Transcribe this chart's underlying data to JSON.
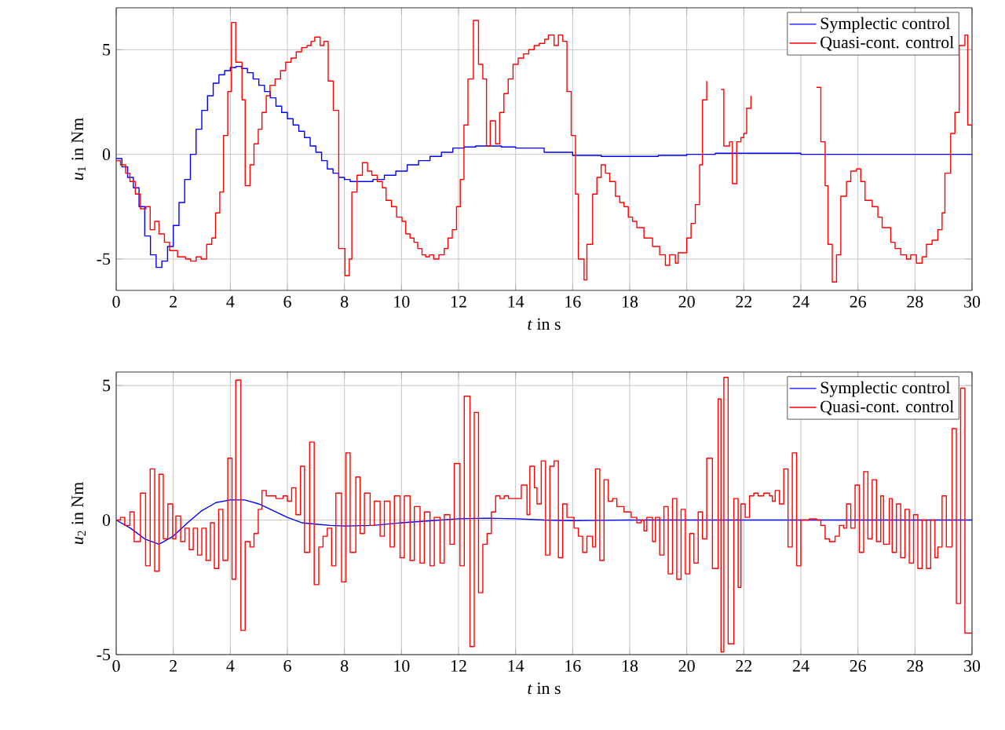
{
  "chart_data": [
    {
      "type": "step",
      "xlabel": "*t* in s",
      "ylabel": "*u*$_{1}$ in Nm",
      "xlim": [
        0,
        30
      ],
      "ylim": [
        -6.5,
        7
      ],
      "xticks": [
        0,
        2,
        4,
        6,
        8,
        10,
        12,
        14,
        16,
        18,
        20,
        22,
        24,
        26,
        28,
        30
      ],
      "yticks": [
        -5,
        0,
        5
      ],
      "grid": true,
      "legend": "top right",
      "series": [
        {
          "name": "Symplectic control",
          "color": "#0000ff",
          "x": [
            0,
            0.2,
            0.4,
            0.6,
            0.8,
            1.0,
            1.2,
            1.4,
            1.6,
            1.8,
            2.0,
            2.2,
            2.4,
            2.6,
            2.8,
            3.0,
            3.2,
            3.4,
            3.6,
            3.8,
            4.0,
            4.2,
            4.4,
            4.6,
            4.8,
            5.0,
            5.2,
            5.4,
            5.6,
            5.8,
            6.0,
            6.2,
            6.4,
            6.6,
            6.8,
            7.0,
            7.2,
            7.4,
            7.6,
            7.8,
            8.0,
            8.2,
            8.4,
            8.6,
            8.8,
            9.0,
            9.4,
            9.8,
            10.2,
            10.6,
            11.0,
            11.4,
            11.8,
            12.2,
            12.6,
            13.0,
            13.5,
            14,
            15,
            16,
            17,
            18,
            19,
            20,
            21,
            22,
            24,
            26,
            28,
            30
          ],
          "values": [
            -0.2,
            -0.6,
            -1.1,
            -1.6,
            -2.5,
            -3.9,
            -4.8,
            -5.4,
            -5.1,
            -4.4,
            -3.4,
            -2.3,
            -1.2,
            0.0,
            1.2,
            2.1,
            2.8,
            3.4,
            3.8,
            4.0,
            4.15,
            4.2,
            4.1,
            3.9,
            3.6,
            3.3,
            3.0,
            2.7,
            2.3,
            2.0,
            1.7,
            1.4,
            1.1,
            0.8,
            0.4,
            0.1,
            -0.3,
            -0.7,
            -0.9,
            -1.1,
            -1.2,
            -1.3,
            -1.3,
            -1.3,
            -1.3,
            -1.2,
            -1.0,
            -0.8,
            -0.5,
            -0.3,
            -0.1,
            0.1,
            0.3,
            0.35,
            0.4,
            0.4,
            0.35,
            0.3,
            0.1,
            -0.05,
            -0.1,
            -0.1,
            -0.05,
            0,
            0.05,
            0.05,
            0,
            0,
            0,
            0
          ]
        },
        {
          "name": "Quasi-cont. control",
          "color": "#ff0000",
          "x": [
            0.0,
            0.15,
            0.33,
            0.48,
            0.67,
            0.85,
            1.04,
            1.19,
            1.35,
            1.5,
            1.69,
            1.87,
            2.15,
            2.43,
            2.61,
            2.8,
            2.98,
            3.17,
            3.35,
            3.48,
            3.63,
            3.76,
            3.91,
            4.04,
            4.19,
            4.41,
            4.52,
            4.69,
            4.83,
            4.98,
            5.11,
            5.26,
            5.39,
            5.57,
            5.76,
            5.94,
            6.13,
            6.31,
            6.5,
            6.69,
            6.83,
            6.96,
            7.15,
            7.28,
            7.43,
            7.61,
            7.8,
            8.02,
            8.17,
            8.26,
            8.44,
            8.63,
            8.81,
            8.96,
            9.15,
            9.33,
            9.46,
            9.65,
            9.83,
            10.02,
            10.15,
            10.3,
            10.44,
            10.57,
            10.72,
            10.85,
            10.98,
            11.13,
            11.31,
            11.5,
            11.63,
            11.78,
            11.93,
            12.06,
            12.19,
            12.33,
            12.52,
            12.7,
            12.85,
            12.98,
            13.11,
            13.3,
            13.44,
            13.59,
            13.74,
            13.91,
            14.09,
            14.28,
            14.46,
            14.65,
            14.83,
            15.02,
            15.15,
            15.35,
            15.5,
            15.65,
            15.8,
            15.95,
            16.1,
            16.2,
            16.4,
            16.5,
            16.7,
            16.85,
            17.0,
            17.15,
            17.3,
            17.5,
            17.65,
            17.8,
            17.95,
            18.1,
            18.25,
            18.5,
            18.8,
            19.05,
            19.25,
            19.4,
            19.6,
            19.7,
            20.0,
            20.15,
            20.3,
            20.45,
            20.55,
            20.7,
            20.85,
            21.2,
            21.3,
            21.5,
            21.6,
            21.75,
            21.9,
            22.0,
            22.1,
            22.25,
            22.4,
            24.55,
            24.7,
            24.85,
            24.95,
            25.1,
            25.25,
            25.4,
            25.6,
            25.75,
            25.95,
            26.1,
            26.25,
            26.5,
            26.7,
            26.85,
            27.15,
            27.3,
            27.5,
            27.7,
            27.85,
            28.05,
            28.25,
            28.4,
            28.6,
            28.8,
            28.95,
            29.05,
            29.25,
            29.4,
            29.55,
            29.75,
            29.85,
            30
          ],
          "values": [
            -0.3,
            -0.5,
            -0.9,
            -1.3,
            -1.9,
            -2.6,
            -2.5,
            -3.6,
            -3.2,
            -3.8,
            -4.2,
            -4.6,
            -4.9,
            -5.0,
            -5.1,
            -4.9,
            -5.0,
            -4.3,
            -4.0,
            -2.8,
            -1.8,
            0.9,
            3.0,
            6.3,
            4.4,
            2.6,
            -1.5,
            -0.5,
            0.5,
            1.2,
            2.0,
            2.8,
            3.3,
            3.6,
            4.0,
            4.4,
            4.6,
            4.9,
            5.1,
            5.2,
            5.4,
            5.6,
            5.2,
            5.4,
            3.5,
            2.1,
            -4.5,
            -5.8,
            -5.0,
            -1.8,
            -1.0,
            -0.4,
            -0.8,
            -1.0,
            -1.3,
            -1.6,
            -2.2,
            -2.5,
            -3.0,
            -3.2,
            -3.8,
            -4.0,
            -4.2,
            -4.5,
            -4.8,
            -4.9,
            -4.8,
            -5.0,
            -4.8,
            -4.5,
            -4.0,
            -3.6,
            -2.5,
            -1.2,
            1.4,
            3.6,
            6.4,
            4.3,
            3.6,
            0.4,
            1.6,
            0.5,
            2.0,
            2.9,
            3.6,
            4.3,
            4.6,
            4.8,
            5.0,
            5.2,
            5.3,
            5.5,
            5.7,
            5.2,
            5.7,
            5.4,
            3.0,
            0.9,
            -1.9,
            -5.0,
            -6.0,
            -4.3,
            -1.9,
            -1.1,
            -0.5,
            -0.9,
            -1.3,
            -2.0,
            -2.3,
            -2.5,
            -3.0,
            -3.2,
            -3.5,
            -4.0,
            -4.4,
            -4.8,
            -5.3,
            -4.8,
            -5.2,
            -4.7,
            -4.0,
            -3.3,
            -2.4,
            -0.5,
            2.6,
            3.5,
            null,
            3.1,
            0.4,
            0.6,
            -1.4,
            0.6,
            0.8,
            1.0,
            2.2,
            2.8,
            null,
            3.2,
            0.6,
            -1.5,
            -4.3,
            -6.1,
            -4.8,
            -2.0,
            -1.3,
            -0.8,
            -0.7,
            -1.3,
            -2.2,
            -2.5,
            -3.0,
            -3.5,
            -4.2,
            -4.5,
            -4.8,
            -5.0,
            -4.8,
            -5.2,
            -4.9,
            -4.3,
            -4.1,
            -3.6,
            -2.8,
            -0.9,
            1.0,
            2.0,
            5.2,
            5.7,
            1.4,
            0.8
          ]
        }
      ]
    },
    {
      "type": "step",
      "xlabel": "*t* in s",
      "ylabel": "*u*$_{2}$ in Nm",
      "xlim": [
        0,
        30
      ],
      "ylim": [
        -5,
        5.5
      ],
      "xticks": [
        0,
        2,
        4,
        6,
        8,
        10,
        12,
        14,
        16,
        18,
        20,
        22,
        24,
        26,
        28,
        30
      ],
      "yticks": [
        -5,
        0,
        5
      ],
      "grid": true,
      "legend": "top right",
      "series": [
        {
          "name": "Symplectic control",
          "color": "#0000ff",
          "type": "line",
          "x": [
            0,
            0.5,
            1.0,
            1.5,
            2.0,
            2.5,
            3.0,
            3.5,
            4.0,
            4.5,
            5.0,
            5.5,
            6.0,
            6.5,
            7,
            7.5,
            8,
            9,
            10,
            11,
            12,
            13,
            14,
            15,
            16,
            18,
            30
          ],
          "values": [
            0,
            -0.3,
            -0.7,
            -0.9,
            -0.6,
            -0.1,
            0.35,
            0.65,
            0.75,
            0.75,
            0.6,
            0.35,
            0.1,
            -0.1,
            -0.15,
            -0.2,
            -0.22,
            -0.2,
            -0.1,
            -0.03,
            0.05,
            0.07,
            0.05,
            0.0,
            -0.02,
            0,
            0
          ]
        },
        {
          "name": "Quasi-cont. control",
          "color": "#ff0000",
          "x": [
            0.0,
            0.15,
            0.3,
            0.48,
            0.63,
            0.85,
            1.03,
            1.19,
            1.35,
            1.5,
            1.65,
            1.81,
            1.98,
            2.09,
            2.26,
            2.41,
            2.56,
            2.7,
            2.85,
            3.0,
            3.15,
            3.3,
            3.44,
            3.59,
            3.74,
            3.91,
            4.06,
            4.19,
            4.37,
            4.52,
            4.69,
            4.83,
            4.98,
            5.11,
            5.26,
            5.6,
            5.85,
            6.0,
            6.15,
            6.3,
            6.46,
            6.6,
            6.78,
            6.94,
            7.1,
            7.25,
            7.4,
            7.55,
            7.7,
            7.9,
            8.05,
            8.2,
            8.4,
            8.55,
            8.7,
            8.9,
            9.05,
            9.25,
            9.4,
            9.6,
            9.75,
            9.95,
            10.1,
            10.3,
            10.45,
            10.65,
            10.8,
            11.0,
            11.15,
            11.35,
            11.5,
            11.7,
            11.85,
            12.05,
            12.2,
            12.4,
            12.55,
            12.7,
            12.85,
            13.0,
            13.15,
            13.3,
            13.45,
            13.6,
            13.75,
            14.2,
            14.4,
            14.5,
            14.66,
            14.75,
            14.9,
            15.05,
            15.2,
            15.35,
            15.5,
            15.65,
            15.8,
            16.05,
            16.2,
            16.35,
            16.5,
            16.7,
            16.8,
            16.95,
            17.1,
            17.25,
            17.4,
            17.55,
            17.8,
            18.05,
            18.25,
            18.4,
            18.5,
            18.6,
            18.8,
            18.9,
            19.05,
            19.2,
            19.35,
            19.5,
            19.65,
            19.8,
            19.95,
            20.1,
            20.25,
            20.4,
            20.55,
            20.7,
            20.9,
            21.1,
            21.2,
            21.3,
            21.45,
            21.65,
            21.8,
            21.9,
            22.05,
            22.2,
            22.35,
            22.5,
            22.7,
            22.9,
            23.0,
            23.1,
            23.25,
            23.4,
            23.55,
            23.7,
            23.85,
            24.0,
            24.3,
            24.55,
            24.7,
            24.85,
            25.0,
            25.2,
            25.35,
            25.5,
            25.6,
            25.75,
            25.9,
            26.05,
            26.2,
            26.35,
            26.5,
            26.65,
            26.8,
            26.9,
            27.1,
            27.2,
            27.35,
            27.5,
            27.65,
            27.8,
            27.95,
            28.1,
            28.25,
            28.4,
            28.55,
            28.7,
            28.8,
            28.95,
            29.1,
            29.3,
            29.45,
            29.6,
            29.75,
            29.95,
            30
          ],
          "values": [
            0.0,
            0.1,
            -0.2,
            0.3,
            -0.8,
            1.0,
            -1.7,
            1.9,
            -1.9,
            1.7,
            -0.7,
            0.6,
            -0.7,
            0.15,
            -0.8,
            -0.3,
            -1.1,
            -0.3,
            -1.3,
            -0.3,
            -1.5,
            -0.1,
            -1.8,
            0.4,
            -1.5,
            2.3,
            -2.2,
            5.2,
            -4.1,
            -0.8,
            -1.0,
            -0.5,
            0.4,
            1.1,
            0.9,
            0.8,
            0.9,
            0.7,
            1.2,
            0.2,
            2.0,
            -1.2,
            2.9,
            -2.4,
            -1.0,
            -0.6,
            -0.3,
            -1.7,
            1.0,
            -2.3,
            2.5,
            -1.2,
            1.6,
            -0.5,
            1.0,
            -0.2,
            0.7,
            -0.6,
            0.7,
            -1.0,
            0.9,
            -1.4,
            0.9,
            -1.5,
            0.5,
            -1.6,
            0.3,
            -1.7,
            0.1,
            -1.6,
            0.2,
            -0.9,
            2.1,
            -1.7,
            4.6,
            -4.7,
            4.0,
            -2.7,
            -0.9,
            -0.5,
            0.3,
            0.9,
            0.8,
            0.9,
            0.8,
            1.3,
            0.2,
            2.0,
            1.2,
            0.6,
            2.2,
            -1.3,
            2.0,
            2.2,
            -1.4,
            0.6,
            0.1,
            -0.3,
            -0.6,
            -1.2,
            -0.6,
            -1.0,
            1.9,
            -1.5,
            1.5,
            0.7,
            0.8,
            0.5,
            0.3,
            0.1,
            -0.1,
            0.0,
            -0.4,
            0.1,
            -0.8,
            0.1,
            -1.3,
            0.5,
            -2.0,
            0.8,
            -2.2,
            0.4,
            -2.0,
            -0.5,
            -1.6,
            0.3,
            -0.7,
            2.3,
            -1.8,
            4.5,
            -4.9,
            5.3,
            -4.6,
            0.8,
            -2.5,
            0.6,
            0.1,
            0.9,
            1.0,
            0.9,
            1.0,
            0.9,
            0.7,
            1.1,
            0.6,
            1.9,
            -1.0,
            2.5,
            -1.7,
            0,
            0.05,
            0,
            -0.2,
            -0.7,
            -0.8,
            -0.6,
            -0.2,
            -0.3,
            0.6,
            -0.3,
            1.3,
            -1.2,
            1.8,
            -0.7,
            1.5,
            -0.8,
            0.9,
            -0.9,
            0.8,
            -1.2,
            0.6,
            -1.4,
            0.4,
            -1.6,
            0.2,
            -1.8,
            0.0,
            -1.8,
            0.0,
            -1.4,
            -1.0,
            0.9,
            -1.0,
            3.4,
            -3.1,
            4.9,
            -4.2,
            -4.2,
            -4.2
          ]
        }
      ]
    }
  ]
}
